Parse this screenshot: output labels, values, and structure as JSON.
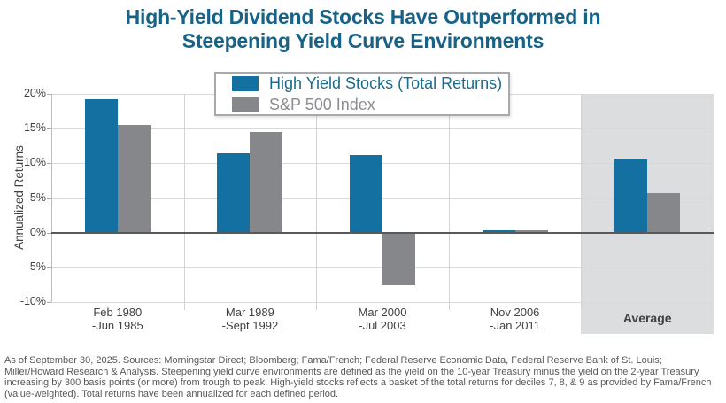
{
  "title_lines": [
    "High-Yield Dividend Stocks Have Outperformed in",
    "Steepening Yield Curve Environments"
  ],
  "y_axis_label": "Annualized Returns",
  "legend": {
    "items": [
      {
        "label": "High Yield Stocks (Total Returns)",
        "color": "#1470a0",
        "text_color": "#1c6b8e"
      },
      {
        "label": "S&P 500 Index",
        "color": "#85878a",
        "text_color": "#8a8c8f"
      }
    ]
  },
  "colors": {
    "title": "#176286",
    "high_yield_bar": "#1470a0",
    "sp500_bar": "#85878a",
    "average_band": "#dcddde",
    "gridline": "#d8d9da",
    "vertical_separator": "#d1d3d4",
    "zero_line": "#58595b",
    "axis_line": "#bcbec0",
    "tick_mark": "#a7a9ac",
    "axis_text": "#414042",
    "footnote_text": "#58595b"
  },
  "chart_data": {
    "type": "bar",
    "title": "High-Yield Dividend Stocks Have Outperformed in Steepening Yield Curve Environments",
    "categories": [
      "Feb 1980 -Jun 1985",
      "Mar 1989 -Sept 1992",
      "Mar 2000 -Jul 2003",
      "Nov 2006 -Jan 2011",
      "Average"
    ],
    "category_lines": [
      [
        "Feb 1980",
        "-Jun 1985"
      ],
      [
        "Mar 1989",
        "-Sept 1992"
      ],
      [
        "Mar 2000",
        "-Jul 2003"
      ],
      [
        "Nov 2006",
        "-Jan 2011"
      ],
      [
        "Average"
      ]
    ],
    "series": [
      {
        "name": "High Yield Stocks (Total Returns)",
        "key": "high-yield",
        "color": "#1470a0",
        "values": [
          19.2,
          11.4,
          11.2,
          0.3,
          10.5
        ]
      },
      {
        "name": "S&P 500 Index",
        "key": "sp500",
        "color": "#85878a",
        "values": [
          15.5,
          14.5,
          -7.6,
          0.4,
          5.7
        ]
      }
    ],
    "xlabel": "",
    "ylabel": "Annualized Returns",
    "ylim": [
      -10,
      20
    ],
    "y_ticks": [
      20,
      15,
      10,
      5,
      0,
      -5,
      -10
    ],
    "y_tick_labels": [
      "20%",
      "15%",
      "10%",
      "5%",
      "0%",
      "-5%",
      "-10%"
    ],
    "grid": true,
    "legend_position": "top-center",
    "highlight_category": "Average"
  },
  "footnote": "As of September 30, 2025. Sources: Morningstar Direct; Bloomberg; Fama/French; Federal Reserve Economic Data, Federal Reserve Bank of St. Louis; Miller/Howard Research & Analysis. Steepening yield curve environments are defined as the yield on the 10-year Treasury minus the yield on the 2-year Treasury increasing by 300 basis points (or more) from trough to peak. High-yield stocks reflects a basket of the total returns for deciles 7, 8, & 9 as provided by Fama/French (value-weighted). Total returns have been annualized for each defined period."
}
